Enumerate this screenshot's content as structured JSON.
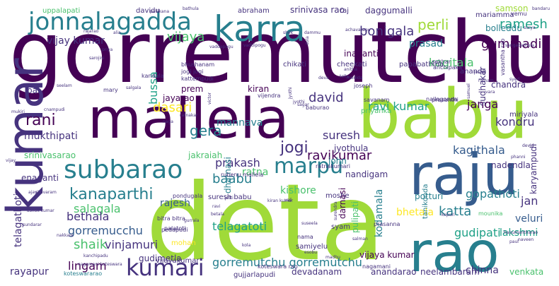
{
  "palette": {
    "background": "#ffffff",
    "viridis": [
      "#440154",
      "#46337e",
      "#365c8d",
      "#277f8e",
      "#1fa187",
      "#4ac16d",
      "#a0da39",
      "#fde725"
    ]
  },
  "words": [
    {
      "text": "gorremutchu",
      "color": "#440154"
    },
    {
      "text": "deta",
      "color": "#a0da39"
    },
    {
      "text": "babu",
      "color": "#a0da39"
    },
    {
      "text": "mallela",
      "color": "#440154"
    },
    {
      "text": "kumar",
      "color": "#46337e"
    },
    {
      "text": "karra",
      "color": "#277f8e"
    },
    {
      "text": "raju",
      "color": "#365c8d"
    },
    {
      "text": "rao",
      "color": "#277f8e"
    },
    {
      "text": "jonnalagadda",
      "color": "#277f8e"
    },
    {
      "text": "kumari",
      "color": "#46337e"
    },
    {
      "text": "subbarao",
      "color": "#277f8e"
    },
    {
      "text": "marpu",
      "color": "#277f8e"
    },
    {
      "text": "vijaya",
      "color": "#4ac16d"
    },
    {
      "text": "kanaparthi",
      "color": "#277f8e"
    },
    {
      "text": "bonigala",
      "color": "#46337e"
    },
    {
      "text": "perli",
      "color": "#a0da39"
    },
    {
      "text": "prasad",
      "color": "#277f8e"
    },
    {
      "text": "ramesh",
      "color": "#1fa187"
    },
    {
      "text": "vijay kumar",
      "color": "#46337e"
    },
    {
      "text": "kagitala",
      "color": "#4ac16d"
    },
    {
      "text": "gummadi",
      "color": "#440154"
    },
    {
      "text": "bussa",
      "color": "#1fa187"
    },
    {
      "text": "dasari",
      "color": "#fde725"
    },
    {
      "text": "mannava",
      "color": "#277f8e"
    },
    {
      "text": "david",
      "color": "#46337e"
    },
    {
      "text": "ravi kumar",
      "color": "#1fa187"
    },
    {
      "text": "janga",
      "color": "#440154"
    },
    {
      "text": "rani",
      "color": "#440154"
    },
    {
      "text": "mukthipati",
      "color": "#46337e"
    },
    {
      "text": "gera",
      "color": "#277f8e"
    },
    {
      "text": "suresh",
      "color": "#46337e"
    },
    {
      "text": "jyothula",
      "color": "#46337e"
    },
    {
      "text": "kondru",
      "color": "#46337e"
    },
    {
      "text": "jogi",
      "color": "#46337e"
    },
    {
      "text": "ravikumar",
      "color": "#440154"
    },
    {
      "text": "kagithala",
      "color": "#365c8d"
    },
    {
      "text": "nadendla",
      "color": "#46337e"
    },
    {
      "text": "srinivasarao",
      "color": "#4ac16d"
    },
    {
      "text": "jakraiah",
      "color": "#4ac16d"
    },
    {
      "text": "prakash",
      "color": "#46337e"
    },
    {
      "text": "ratna",
      "color": "#4ac16d"
    },
    {
      "text": "nandigam",
      "color": "#46337e"
    },
    {
      "text": "kishore",
      "color": "#4ac16d"
    },
    {
      "text": "baabu",
      "color": "#277f8e"
    },
    {
      "text": "salagala",
      "color": "#4ac16d"
    },
    {
      "text": "rajesh",
      "color": "#365c8d"
    },
    {
      "text": "bethala",
      "color": "#46337e"
    },
    {
      "text": "gorremucchu",
      "color": "#365c8d"
    },
    {
      "text": "shaik",
      "color": "#4ac16d"
    },
    {
      "text": "vinjamuri",
      "color": "#46337e"
    },
    {
      "text": "telagatoti",
      "color": "#1fa187"
    },
    {
      "text": "kodamala",
      "color": "#277f8e"
    },
    {
      "text": "katta",
      "color": "#277f8e"
    },
    {
      "text": "gopathoti",
      "color": "#277f8e"
    },
    {
      "text": "jan",
      "color": "#46337e"
    },
    {
      "text": "gudipati",
      "color": "#1fa187"
    },
    {
      "text": "veluri",
      "color": "#365c8d"
    },
    {
      "text": "lakshmi",
      "color": "#1fa187"
    },
    {
      "text": "lingam",
      "color": "#440154"
    },
    {
      "text": "gorremutchu gorremutchu",
      "color": "#277f8e"
    },
    {
      "text": "chinna",
      "color": "#46337e"
    },
    {
      "text": "rayapur",
      "color": "#46337e"
    },
    {
      "text": "venkata",
      "color": "#4ac16d"
    },
    {
      "text": "anandarao",
      "color": "#46337e"
    },
    {
      "text": "devadanam",
      "color": "#46337e"
    },
    {
      "text": "telagathoti",
      "color": "#46337e"
    },
    {
      "text": "gudimetla",
      "color": "#46337e"
    },
    {
      "text": "daggumalli",
      "color": "#46337e"
    },
    {
      "text": "srinivasa rao",
      "color": "#46337e"
    },
    {
      "text": "karyampudi",
      "color": "#46337e"
    },
    {
      "text": "uppalapati",
      "color": "#4ac16d"
    },
    {
      "text": "davidu",
      "color": "#46337e"
    },
    {
      "text": "samson",
      "color": "#a0da39"
    },
    {
      "text": "mariamma",
      "color": "#46337e"
    },
    {
      "text": "bolleddu",
      "color": "#277f8e"
    },
    {
      "text": "pulipati",
      "color": "#4ac16d"
    },
    {
      "text": "potturi",
      "color": "#277f8e"
    },
    {
      "text": "bhetala",
      "color": "#fde725"
    },
    {
      "text": "vijaya kumar",
      "color": "#440154"
    },
    {
      "text": "neelambaram",
      "color": "#46337e"
    },
    {
      "text": "vijayakumar",
      "color": "#46337e"
    },
    {
      "text": "gujjarlapudi",
      "color": "#46337e"
    },
    {
      "text": "koteswararao",
      "color": "#277f8e"
    },
    {
      "text": "prem",
      "color": "#440154"
    },
    {
      "text": "jayarao",
      "color": "#440154"
    },
    {
      "text": "john",
      "color": "#277f8e"
    },
    {
      "text": "sudhakar",
      "color": "#46337e"
    },
    {
      "text": "tanikonda",
      "color": "#277f8e"
    },
    {
      "text": "chandra",
      "color": "#46337e"
    },
    {
      "text": "kiran",
      "color": "#440154"
    },
    {
      "text": "dharnasi",
      "color": "#277f8e"
    },
    {
      "text": "darnasi",
      "color": "#440154"
    },
    {
      "text": "syam",
      "color": "#46337e"
    },
    {
      "text": "abraham",
      "color": "#46337e"
    },
    {
      "text": "raj",
      "color": "#46337e"
    },
    {
      "text": "chikati",
      "color": "#46337e"
    },
    {
      "text": "cheekati",
      "color": "#46337e"
    },
    {
      "text": "papabathina",
      "color": "#46337e"
    },
    {
      "text": "inaganti",
      "color": "#440154"
    },
    {
      "text": "bhushanam",
      "color": "#46337e"
    },
    {
      "text": "jogi jogi",
      "color": "#46337e"
    },
    {
      "text": "kattempudi",
      "color": "#46337e"
    },
    {
      "text": "kandula",
      "color": "#46337e"
    },
    {
      "text": "enaganti",
      "color": "#46337e"
    },
    {
      "text": "pal",
      "color": "#46337e"
    },
    {
      "text": "mary",
      "color": "#46337e"
    },
    {
      "text": "joseph",
      "color": "#46337e"
    },
    {
      "text": "priyanka",
      "color": "#4ac16d"
    },
    {
      "text": "savanam",
      "color": "#46337e"
    },
    {
      "text": "miriyala",
      "color": "#46337e"
    },
    {
      "text": "suresh babu",
      "color": "#46337e"
    },
    {
      "text": "ratnakumari",
      "color": "#46337e"
    },
    {
      "text": "moshe",
      "color": "#46337e"
    },
    {
      "text": "rubenu mallela",
      "color": "#46337e"
    },
    {
      "text": "pondugala",
      "color": "#46337e"
    },
    {
      "text": "prasanna",
      "color": "#46337e"
    },
    {
      "text": "mounika",
      "color": "#4ac16d"
    },
    {
      "text": "samiyelu",
      "color": "#46337e"
    },
    {
      "text": "nagamani",
      "color": "#46337e"
    },
    {
      "text": "koteswara rao",
      "color": "#46337e"
    },
    {
      "text": "nama",
      "color": "#46337e"
    },
    {
      "text": "mohan",
      "color": "#fde725"
    },
    {
      "text": "palatoti",
      "color": "#46337e"
    },
    {
      "text": "bitra bitra",
      "color": "#46337e"
    },
    {
      "text": "pedapudi",
      "color": "#46337e"
    },
    {
      "text": "ananda",
      "color": "#46337e"
    },
    {
      "text": "sekhar",
      "color": "#46337e"
    },
    {
      "text": "anchipaka",
      "color": "#46337e"
    },
    {
      "text": "nallagonda",
      "color": "#46337e"
    },
    {
      "text": "prasanthi",
      "color": "#46337e"
    },
    {
      "text": "baburao",
      "color": "#46337e"
    },
    {
      "text": "vijendra",
      "color": "#46337e"
    },
    {
      "text": "ratnam",
      "color": "#46337e"
    },
    {
      "text": "vasantha rao",
      "color": "#46337e"
    },
    {
      "text": "sangabathula",
      "color": "#46337e"
    },
    {
      "text": "hanumantharao",
      "color": "#46337e"
    },
    {
      "text": "devid",
      "color": "#46337e"
    },
    {
      "text": "naveen",
      "color": "#46337e"
    },
    {
      "text": "paul",
      "color": "#46337e"
    },
    {
      "text": "surya",
      "color": "#46337e"
    },
    {
      "text": "bandaru",
      "color": "#46337e"
    },
    {
      "text": "vemu",
      "color": "#46337e"
    },
    {
      "text": "vaddepogu",
      "color": "#46337e"
    },
    {
      "text": "vaddipogu",
      "color": "#46337e"
    },
    {
      "text": "achavarapu",
      "color": "#46337e"
    },
    {
      "text": "dammu",
      "color": "#46337e"
    },
    {
      "text": "dola",
      "color": "#46337e"
    },
    {
      "text": "shek",
      "color": "#46337e"
    },
    {
      "text": "bathula",
      "color": "#46337e"
    },
    {
      "text": "pallikana",
      "color": "#46337e"
    },
    {
      "text": "rajarao",
      "color": "#46337e"
    },
    {
      "text": "alia",
      "color": "#46337e"
    },
    {
      "text": "priya",
      "color": "#46337e"
    },
    {
      "text": "sarojini",
      "color": "#46337e"
    },
    {
      "text": "seelam",
      "color": "#46337e"
    },
    {
      "text": "salgala",
      "color": "#46337e"
    },
    {
      "text": "mukiri",
      "color": "#46337e"
    },
    {
      "text": "cnampudi",
      "color": "#46337e"
    },
    {
      "text": "vijay",
      "color": "#46337e"
    },
    {
      "text": "naga",
      "color": "#46337e"
    },
    {
      "text": "victor",
      "color": "#46337e"
    },
    {
      "text": "jyothi",
      "color": "#46337e"
    },
    {
      "text": "ravi",
      "color": "#46337e"
    },
    {
      "text": "betala",
      "color": "#46337e"
    },
    {
      "text": "ajay",
      "color": "#46337e"
    },
    {
      "text": "ashok kumar",
      "color": "#46337e"
    },
    {
      "text": "sundarar",
      "color": "#46337e"
    },
    {
      "text": "nakkala",
      "color": "#46337e"
    },
    {
      "text": "kola",
      "color": "#46337e"
    },
    {
      "text": "esobu",
      "color": "#46337e"
    },
    {
      "text": "madhu",
      "color": "#46337e"
    },
    {
      "text": "salman",
      "color": "#46337e"
    },
    {
      "text": "kopuri",
      "color": "#46337e"
    },
    {
      "text": "syed",
      "color": "#46337e"
    },
    {
      "text": "tella",
      "color": "#46337e"
    },
    {
      "text": "deva",
      "color": "#46337e"
    },
    {
      "text": "joshi",
      "color": "#46337e"
    },
    {
      "text": "vara",
      "color": "#46337e"
    },
    {
      "text": "phanni",
      "color": "#46337e"
    },
    {
      "text": "jetti",
      "color": "#46337e"
    },
    {
      "text": "vali",
      "color": "#46337e"
    },
    {
      "text": "suseela",
      "color": "#46337e"
    },
    {
      "text": "surendra",
      "color": "#46337e"
    },
    {
      "text": "gurrala",
      "color": "#46337e"
    },
    {
      "text": "kanchipadu",
      "color": "#46337e"
    },
    {
      "text": "shavaram",
      "color": "#46337e"
    },
    {
      "text": "ratnakar",
      "color": "#46337e"
    },
    {
      "text": "nagamani koteswara",
      "color": "#46337e"
    },
    {
      "text": "kiran kumar",
      "color": "#46337e"
    },
    {
      "text": "anitha",
      "color": "#46337e"
    },
    {
      "text": "medida",
      "color": "#46337e"
    },
    {
      "text": "samuel",
      "color": "#46337e"
    },
    {
      "text": "jyothi",
      "color": "#46337e"
    },
    {
      "text": "sagar",
      "color": "#46337e"
    }
  ]
}
